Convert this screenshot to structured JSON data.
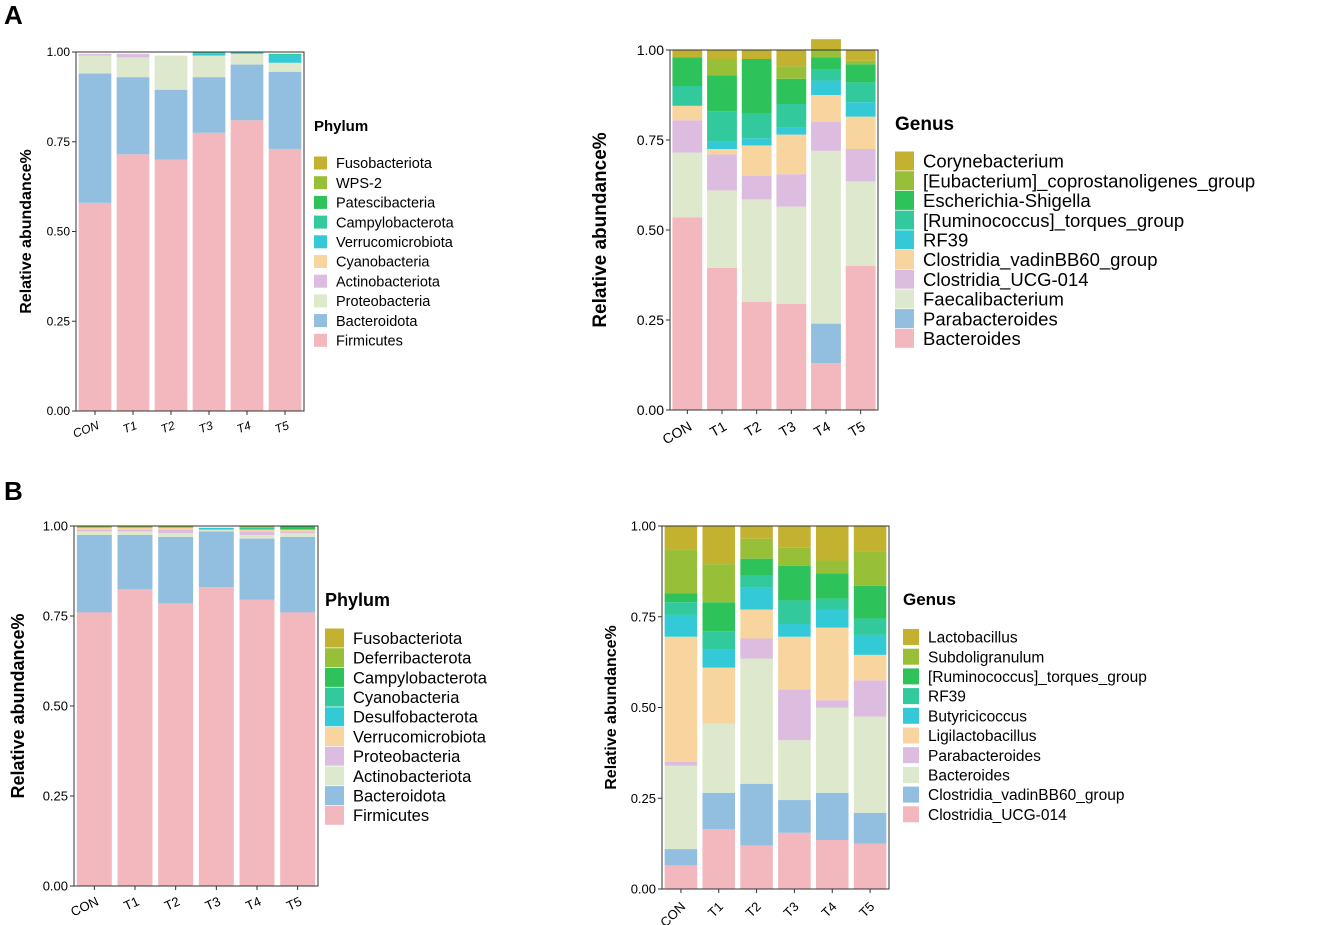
{
  "panels": [
    {
      "label": "A"
    },
    {
      "label": "B"
    }
  ],
  "chart_data": [
    {
      "type": "bar",
      "stacked": true,
      "panel": "A",
      "position": "left",
      "title": "",
      "categories": [
        "CON",
        "T1",
        "T2",
        "T3",
        "T4",
        "T5"
      ],
      "ylabel": "Relative abundance%",
      "xlabel": "",
      "ylim": [
        0,
        1
      ],
      "yticks": [
        "0.00",
        "0.25",
        "0.50",
        "0.75",
        "1.00"
      ],
      "legend_title": "Phylum",
      "series": [
        {
          "name": "Firmicutes",
          "color": "#F2B8BD",
          "values": [
            0.58,
            0.715,
            0.7,
            0.775,
            0.81,
            0.73
          ]
        },
        {
          "name": "Bacteroidota",
          "color": "#92BEDF",
          "values": [
            0.36,
            0.215,
            0.195,
            0.155,
            0.155,
            0.215
          ]
        },
        {
          "name": "Proteobacteria",
          "color": "#DDE8CC",
          "values": [
            0.05,
            0.055,
            0.095,
            0.06,
            0.03,
            0.025
          ]
        },
        {
          "name": "Actinobacteriota",
          "color": "#DCBDE0",
          "values": [
            0.005,
            0.01,
            0.0,
            0.0,
            0.0,
            0.0
          ]
        },
        {
          "name": "Cyanobacteria",
          "color": "#F8D49F",
          "values": [
            0.0,
            0.0,
            0.0,
            0.0,
            0.0,
            0.0
          ]
        },
        {
          "name": "Verrucomicrobiota",
          "color": "#34C9D6",
          "values": [
            0.0,
            0.0,
            0.0,
            0.005,
            0.005,
            0.02
          ]
        },
        {
          "name": "Campylobacterota",
          "color": "#32C99D",
          "values": [
            0.0,
            0.0,
            0.0,
            0.005,
            0.0,
            0.005
          ]
        },
        {
          "name": "Patescibacteria",
          "color": "#2EC25B",
          "values": [
            0.0,
            0.0,
            0.0,
            0.0,
            0.0,
            0.0
          ]
        },
        {
          "name": "WPS-2",
          "color": "#97C038",
          "values": [
            0.0,
            0.0,
            0.0,
            0.0,
            0.0,
            0.0
          ]
        },
        {
          "name": "Fusobacteriota",
          "color": "#C3B230",
          "values": [
            0.0,
            0.0,
            0.0,
            0.0,
            0.0,
            0.0
          ]
        }
      ]
    },
    {
      "type": "bar",
      "stacked": true,
      "panel": "A",
      "position": "right",
      "title": "",
      "categories": [
        "CON",
        "T1",
        "T2",
        "T3",
        "T4",
        "T5"
      ],
      "ylabel": "Relative abundance%",
      "xlabel": "",
      "ylim": [
        0,
        1
      ],
      "yticks": [
        "0.00",
        "0.25",
        "0.50",
        "0.75",
        "1.00"
      ],
      "legend_title": "Genus",
      "series": [
        {
          "name": "Bacteroides",
          "color": "#F2B8BD",
          "values": [
            0.535,
            0.395,
            0.3,
            0.295,
            0.13,
            0.4
          ]
        },
        {
          "name": "Parabacteroides",
          "color": "#92BEDF",
          "values": [
            0.0,
            0.0,
            0.0,
            0.0,
            0.11,
            0.0
          ]
        },
        {
          "name": "Faecalibacterium",
          "color": "#DDE8CC",
          "values": [
            0.18,
            0.215,
            0.285,
            0.27,
            0.48,
            0.235
          ]
        },
        {
          "name": "Clostridia_UCG-014",
          "color": "#DCBDE0",
          "values": [
            0.09,
            0.1,
            0.065,
            0.09,
            0.08,
            0.09
          ]
        },
        {
          "name": "Clostridia_vadinBB60_group",
          "color": "#F8D49F",
          "values": [
            0.04,
            0.015,
            0.085,
            0.11,
            0.075,
            0.09
          ]
        },
        {
          "name": "RF39",
          "color": "#34C9D6",
          "values": [
            0.0,
            0.02,
            0.02,
            0.02,
            0.04,
            0.04
          ]
        },
        {
          "name": "[Ruminococcus]_torques_group",
          "color": "#32C99D",
          "values": [
            0.055,
            0.085,
            0.07,
            0.065,
            0.03,
            0.055
          ]
        },
        {
          "name": "Escherichia-Shigella",
          "color": "#2EC25B",
          "values": [
            0.08,
            0.1,
            0.15,
            0.07,
            0.035,
            0.05
          ]
        },
        {
          "name": "[Eubacterium]_coprostanoligenes_group",
          "color": "#97C038",
          "values": [
            0.0,
            0.045,
            0.0,
            0.035,
            0.02,
            0.01
          ]
        },
        {
          "name": "Corynebacterium",
          "color": "#C3B230",
          "values": [
            0.02,
            0.025,
            0.025,
            0.045,
            0.03,
            0.03
          ]
        }
      ]
    },
    {
      "type": "bar",
      "stacked": true,
      "panel": "B",
      "position": "left",
      "title": "",
      "categories": [
        "CON",
        "T1",
        "T2",
        "T3",
        "T4",
        "T5"
      ],
      "ylabel": "Relative abundance%",
      "xlabel": "",
      "ylim": [
        0,
        1
      ],
      "yticks": [
        "0.00",
        "0.25",
        "0.50",
        "0.75",
        "1.00"
      ],
      "legend_title": "Phylum",
      "series": [
        {
          "name": "Firmicutes",
          "color": "#F2B8BD",
          "values": [
            0.76,
            0.825,
            0.785,
            0.83,
            0.795,
            0.76
          ]
        },
        {
          "name": "Bacteroidota",
          "color": "#92BEDF",
          "values": [
            0.215,
            0.15,
            0.185,
            0.155,
            0.17,
            0.21
          ]
        },
        {
          "name": "Actinobacteriota",
          "color": "#DDE8CC",
          "values": [
            0.01,
            0.01,
            0.01,
            0.005,
            0.01,
            0.01
          ]
        },
        {
          "name": "Proteobacteria",
          "color": "#DCBDE0",
          "values": [
            0.005,
            0.005,
            0.01,
            0.0,
            0.01,
            0.005
          ]
        },
        {
          "name": "Verrucomicrobiota",
          "color": "#F8D49F",
          "values": [
            0.005,
            0.005,
            0.005,
            0.0,
            0.005,
            0.005
          ]
        },
        {
          "name": "Desulfobacterota",
          "color": "#34C9D6",
          "values": [
            0.0,
            0.0,
            0.0,
            0.005,
            0.0,
            0.0
          ]
        },
        {
          "name": "Cyanobacteria",
          "color": "#32C99D",
          "values": [
            0.0,
            0.0,
            0.0,
            0.0,
            0.005,
            0.0
          ]
        },
        {
          "name": "Campylobacterota",
          "color": "#2EC25B",
          "values": [
            0.0,
            0.0,
            0.0,
            0.0,
            0.0,
            0.01
          ]
        },
        {
          "name": "Deferribacterota",
          "color": "#97C038",
          "values": [
            0.005,
            0.005,
            0.005,
            0.0,
            0.005,
            0.0
          ]
        },
        {
          "name": "Fusobacteriota",
          "color": "#C3B230",
          "values": [
            0.0,
            0.0,
            0.0,
            0.0,
            0.0,
            0.0
          ]
        }
      ]
    },
    {
      "type": "bar",
      "stacked": true,
      "panel": "B",
      "position": "right",
      "title": "",
      "categories": [
        "CON",
        "T1",
        "T2",
        "T3",
        "T4",
        "T5"
      ],
      "ylabel": "Relative abundance%",
      "xlabel": "",
      "ylim": [
        0,
        1
      ],
      "yticks": [
        "0.00",
        "0.25",
        "0.50",
        "0.75",
        "1.00"
      ],
      "legend_title": "Genus",
      "series": [
        {
          "name": "Clostridia_UCG-014",
          "color": "#F2B8BD",
          "values": [
            0.065,
            0.165,
            0.12,
            0.155,
            0.135,
            0.125
          ]
        },
        {
          "name": "Clostridia_vadinBB60_group",
          "color": "#92BEDF",
          "values": [
            0.045,
            0.1,
            0.17,
            0.09,
            0.13,
            0.085
          ]
        },
        {
          "name": "Bacteroides",
          "color": "#DDE8CC",
          "values": [
            0.23,
            0.19,
            0.345,
            0.165,
            0.235,
            0.265
          ]
        },
        {
          "name": "Parabacteroides",
          "color": "#DCBDE0",
          "values": [
            0.01,
            0.0,
            0.055,
            0.14,
            0.02,
            0.1
          ]
        },
        {
          "name": "Ligilactobacillus",
          "color": "#F8D49F",
          "values": [
            0.345,
            0.155,
            0.08,
            0.145,
            0.2,
            0.07
          ]
        },
        {
          "name": "Butyricicoccus",
          "color": "#34C9D6",
          "values": [
            0.06,
            0.05,
            0.06,
            0.035,
            0.05,
            0.055
          ]
        },
        {
          "name": "RF39",
          "color": "#32C99D",
          "values": [
            0.035,
            0.05,
            0.035,
            0.065,
            0.03,
            0.045
          ]
        },
        {
          "name": "[Ruminococcus]_torques_group",
          "color": "#2EC25B",
          "values": [
            0.025,
            0.08,
            0.045,
            0.095,
            0.07,
            0.09
          ]
        },
        {
          "name": "Subdoligranulum",
          "color": "#97C038",
          "values": [
            0.12,
            0.105,
            0.055,
            0.05,
            0.035,
            0.095
          ]
        },
        {
          "name": "Lactobacillus",
          "color": "#C3B230",
          "values": [
            0.065,
            0.105,
            0.035,
            0.06,
            0.095,
            0.07
          ]
        }
      ]
    }
  ]
}
